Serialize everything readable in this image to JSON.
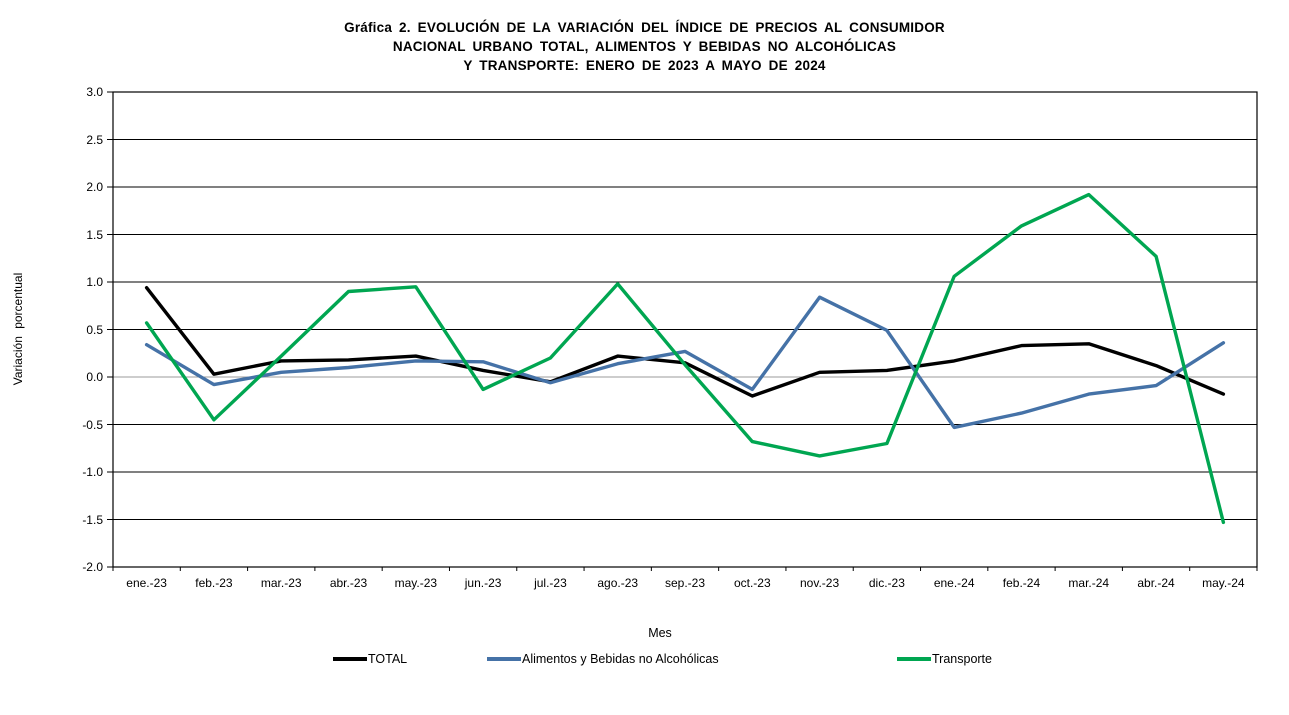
{
  "title": {
    "line1": "Gráfica 2. EVOLUCIÓN DE LA VARIACIÓN DEL ÍNDICE DE PRECIOS AL CONSUMIDOR",
    "line2": "NACIONAL URBANO TOTAL, ALIMENTOS Y BEBIDAS NO ALCOHÓLICAS",
    "line3": "Y TRANSPORTE: ENERO DE 2023 A MAYO DE 2024"
  },
  "chart_data": {
    "type": "line",
    "title": "Gráfica 2. EVOLUCIÓN DE LA VARIACIÓN DEL ÍNDICE DE PRECIOS AL CONSUMIDOR NACIONAL URBANO TOTAL, ALIMENTOS Y BEBIDAS NO ALCOHÓLICAS Y TRANSPORTE: ENERO DE 2023 A MAYO DE 2024",
    "xlabel": "Mes",
    "ylabel": "Variación porcentual",
    "ylim": [
      -2.0,
      3.0
    ],
    "ytick_step": 0.5,
    "y_ticks": [
      3.0,
      2.5,
      2.0,
      1.5,
      1.0,
      0.5,
      0.0,
      -0.5,
      -1.0,
      -1.5,
      -2.0
    ],
    "grid": true,
    "legend_position": "bottom",
    "categories": [
      "ene.-23",
      "feb.-23",
      "mar.-23",
      "abr.-23",
      "may.-23",
      "jun.-23",
      "jul.-23",
      "ago.-23",
      "sep.-23",
      "oct.-23",
      "nov.-23",
      "dic.-23",
      "ene.-24",
      "feb.-24",
      "mar.-24",
      "abr.-24",
      "may.-24"
    ],
    "series": [
      {
        "name": "TOTAL",
        "color": "#000000",
        "values": [
          0.94,
          0.03,
          0.17,
          0.18,
          0.22,
          0.07,
          -0.05,
          0.22,
          0.15,
          -0.2,
          0.05,
          0.07,
          0.17,
          0.33,
          0.35,
          0.12,
          -0.18
        ]
      },
      {
        "name": "Alimentos y Bebidas no Alcohólicas",
        "color": "#4572a7",
        "values": [
          0.34,
          -0.08,
          0.05,
          0.1,
          0.17,
          0.16,
          -0.06,
          0.14,
          0.27,
          -0.13,
          0.84,
          0.49,
          -0.53,
          -0.38,
          -0.18,
          -0.09,
          0.36
        ]
      },
      {
        "name": "Transporte",
        "color": "#00a651",
        "values": [
          0.57,
          -0.45,
          0.22,
          0.9,
          0.95,
          -0.13,
          0.2,
          0.98,
          0.13,
          -0.68,
          -0.83,
          -0.7,
          1.06,
          1.59,
          1.92,
          1.27,
          -1.53
        ]
      }
    ],
    "zero_line_color": "#9b9b9b",
    "gridline_color": "#000000"
  }
}
